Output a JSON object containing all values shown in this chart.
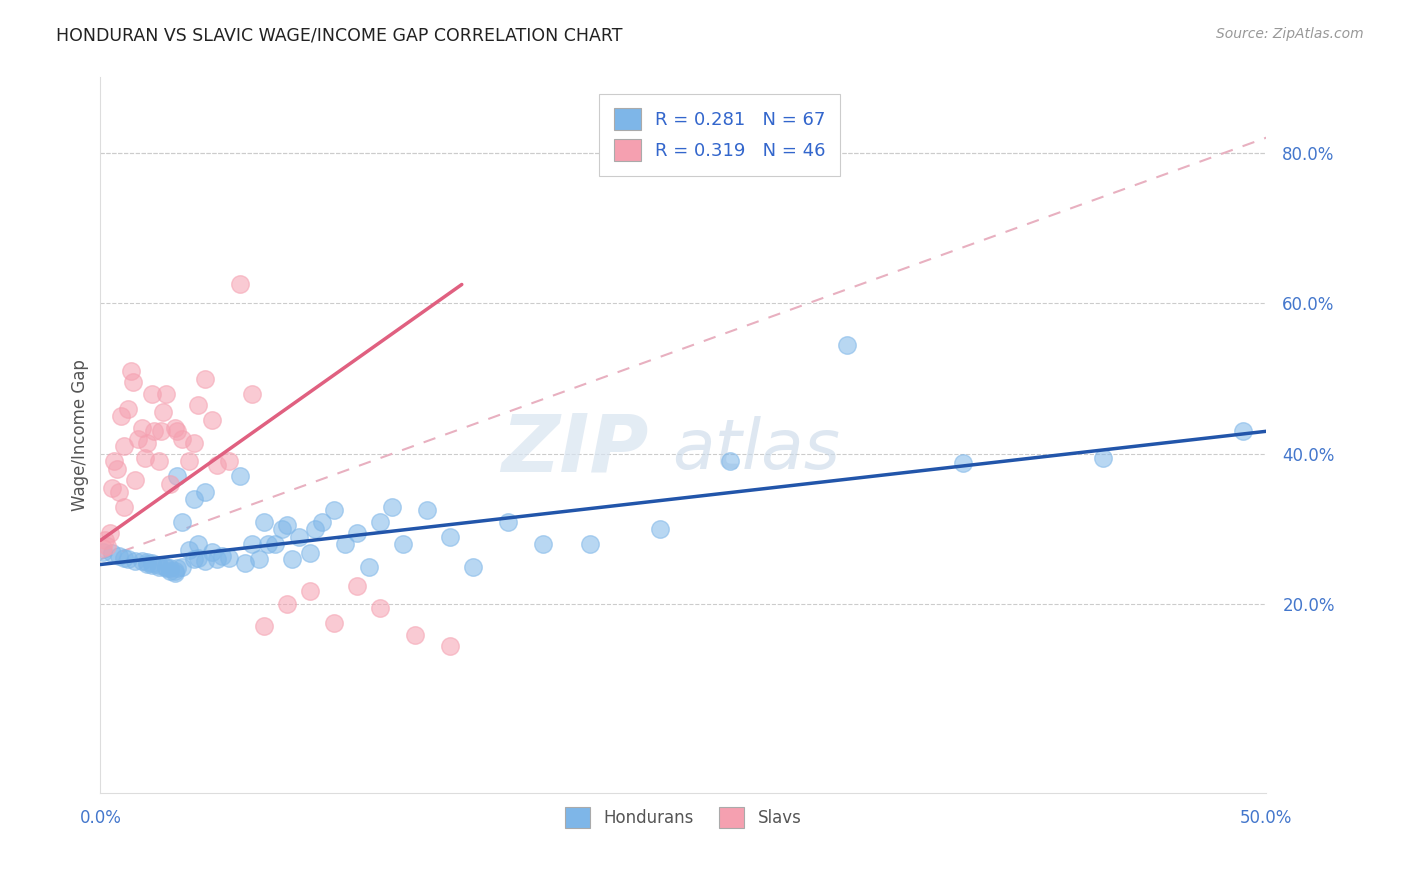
{
  "title": "HONDURAN VS SLAVIC WAGE/INCOME GAP CORRELATION CHART",
  "source": "Source: ZipAtlas.com",
  "ylabel": "Wage/Income Gap",
  "right_yticks": [
    "20.0%",
    "40.0%",
    "60.0%",
    "80.0%"
  ],
  "right_ytick_vals": [
    0.2,
    0.4,
    0.6,
    0.8
  ],
  "xlim": [
    0.0,
    0.5
  ],
  "ylim": [
    -0.05,
    0.9
  ],
  "honduran_color": "#7EB6E8",
  "slavic_color": "#F5A0B0",
  "honduran_line_color": "#2255AA",
  "slavic_line_color": "#E06080",
  "diagonal_color": "#E8B0C0",
  "watermark_zip": "ZIP",
  "watermark_atlas": "atlas",
  "hondurans_x": [
    0.001,
    0.005,
    0.008,
    0.01,
    0.012,
    0.015,
    0.018,
    0.02,
    0.02,
    0.022,
    0.022,
    0.025,
    0.025,
    0.028,
    0.028,
    0.03,
    0.03,
    0.032,
    0.032,
    0.033,
    0.033,
    0.035,
    0.035,
    0.038,
    0.04,
    0.04,
    0.042,
    0.042,
    0.045,
    0.045,
    0.048,
    0.05,
    0.052,
    0.055,
    0.06,
    0.062,
    0.065,
    0.068,
    0.07,
    0.072,
    0.075,
    0.078,
    0.08,
    0.082,
    0.085,
    0.09,
    0.092,
    0.095,
    0.1,
    0.105,
    0.11,
    0.115,
    0.12,
    0.125,
    0.13,
    0.14,
    0.15,
    0.16,
    0.175,
    0.19,
    0.21,
    0.24,
    0.27,
    0.32,
    0.37,
    0.43,
    0.49
  ],
  "hondurans_y": [
    0.27,
    0.268,
    0.265,
    0.262,
    0.26,
    0.258,
    0.258,
    0.256,
    0.254,
    0.255,
    0.252,
    0.25,
    0.252,
    0.25,
    0.248,
    0.248,
    0.245,
    0.245,
    0.242,
    0.248,
    0.37,
    0.25,
    0.31,
    0.272,
    0.26,
    0.34,
    0.262,
    0.28,
    0.258,
    0.35,
    0.27,
    0.26,
    0.265,
    0.262,
    0.37,
    0.255,
    0.28,
    0.26,
    0.31,
    0.28,
    0.28,
    0.3,
    0.305,
    0.26,
    0.29,
    0.268,
    0.3,
    0.31,
    0.325,
    0.28,
    0.295,
    0.25,
    0.31,
    0.33,
    0.28,
    0.325,
    0.29,
    0.25,
    0.31,
    0.28,
    0.28,
    0.3,
    0.39,
    0.545,
    0.388,
    0.395,
    0.43
  ],
  "slavs_x": [
    0.001,
    0.002,
    0.003,
    0.004,
    0.005,
    0.006,
    0.007,
    0.008,
    0.009,
    0.01,
    0.01,
    0.012,
    0.013,
    0.014,
    0.015,
    0.016,
    0.018,
    0.019,
    0.02,
    0.022,
    0.023,
    0.025,
    0.026,
    0.027,
    0.028,
    0.03,
    0.032,
    0.033,
    0.035,
    0.038,
    0.04,
    0.042,
    0.045,
    0.048,
    0.05,
    0.055,
    0.06,
    0.065,
    0.07,
    0.08,
    0.09,
    0.1,
    0.11,
    0.12,
    0.135,
    0.15
  ],
  "slavs_y": [
    0.275,
    0.285,
    0.278,
    0.295,
    0.355,
    0.39,
    0.38,
    0.35,
    0.45,
    0.33,
    0.41,
    0.46,
    0.51,
    0.495,
    0.365,
    0.42,
    0.435,
    0.395,
    0.415,
    0.48,
    0.43,
    0.39,
    0.43,
    0.455,
    0.48,
    0.36,
    0.435,
    0.43,
    0.42,
    0.39,
    0.415,
    0.465,
    0.5,
    0.445,
    0.385,
    0.39,
    0.625,
    0.48,
    0.172,
    0.2,
    0.218,
    0.175,
    0.225,
    0.195,
    0.16,
    0.145
  ],
  "honduran_regline": [
    0.0,
    0.5,
    0.253,
    0.43
  ],
  "slavic_regline": [
    0.0,
    0.155,
    0.285,
    0.625
  ],
  "diagonal_line": [
    0.0,
    0.5,
    0.26,
    0.82
  ]
}
